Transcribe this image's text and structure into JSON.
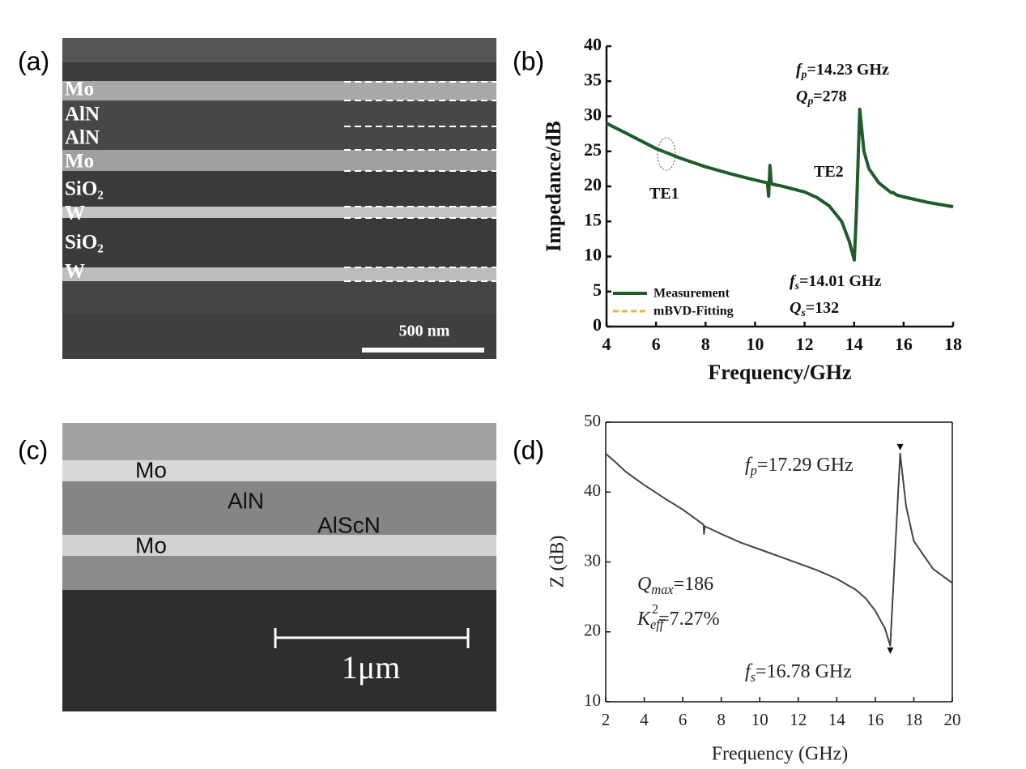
{
  "panel_labels": [
    "(a)",
    "(b)",
    "(c)",
    "(d)"
  ],
  "images": [
    {
      "labels": [
        "Mo",
        "AlN",
        "AlN",
        "Mo",
        "SiO₂",
        "W",
        "SiO₂",
        "W"
      ],
      "scale_bar": "500 nm"
    },
    {
      "labels": [
        "Mo",
        "AlN",
        "AlScN",
        "Mo"
      ],
      "scale_bar": "1μm"
    }
  ],
  "chart_data": [
    {
      "type": "line",
      "x_label": "Frequency/GHz",
      "y_label": "Impedance/dB",
      "x": [
        4,
        5,
        6,
        7,
        8,
        9,
        10,
        10.5,
        10.55,
        10.6,
        10.65,
        10.7,
        11,
        12,
        12.5,
        13,
        13.5,
        13.8,
        14.01,
        14.1,
        14.23,
        14.4,
        14.6,
        15,
        15.5,
        15.6,
        15.7,
        16,
        17,
        18
      ],
      "series": [
        {
          "name": "Measurement",
          "color": "#1f5c2b",
          "dash": false,
          "values": [
            29,
            27.2,
            25.4,
            24,
            22.8,
            21.8,
            20.9,
            20.5,
            18.6,
            23,
            20.6,
            20.3,
            20.1,
            19.2,
            18.4,
            17.2,
            15,
            12.2,
            9.5,
            17,
            31,
            25,
            22.5,
            20.5,
            19.1,
            19.1,
            18.8,
            18.5,
            17.7,
            17.1
          ]
        },
        {
          "name": "mBVD-Fitting",
          "color": "#f2b134",
          "dash": true,
          "values": [
            29,
            27.2,
            25.4,
            24,
            22.8,
            21.8,
            20.9,
            20.5,
            20.45,
            20.4,
            20.35,
            20.3,
            20.1,
            19.2,
            18.4,
            17.2,
            15,
            12.2,
            9.5,
            17,
            31,
            25,
            22.5,
            20.5,
            19.1,
            18.95,
            18.8,
            18.5,
            17.7,
            17.1
          ]
        }
      ],
      "xlim": [
        4,
        18
      ],
      "xticks": [
        4,
        6,
        8,
        10,
        12,
        14,
        16,
        18
      ],
      "ylim": [
        0,
        40
      ],
      "yticks": [
        0,
        5,
        10,
        15,
        20,
        25,
        30,
        35,
        40
      ],
      "legend": "lower left",
      "annotations": [
        {
          "base": "f",
          "sub": "p",
          "text": "=14.23 GHz"
        },
        {
          "base": "Q",
          "sub": "p",
          "text": "=278"
        },
        {
          "base": "f",
          "sub": "s",
          "text": "=14.01 GHz"
        },
        {
          "base": "Q",
          "sub": "s",
          "text": "=132"
        },
        {
          "text": "TE1"
        },
        {
          "text": "TE2"
        }
      ]
    },
    {
      "type": "line",
      "x_label": "Frequency (GHz)",
      "y_label": "Z (dB)",
      "x": [
        2,
        2.5,
        3,
        4,
        5,
        6,
        7,
        7.08,
        7.1,
        7.15,
        8,
        9,
        10,
        11,
        12,
        13,
        14,
        15,
        15.5,
        16,
        16.5,
        16.78,
        17,
        17.29,
        17.6,
        18,
        19,
        20
      ],
      "series": [
        {
          "color": "#444444",
          "values": [
            45.5,
            44.3,
            43,
            41,
            39.2,
            37.5,
            35.5,
            35.3,
            34,
            35.1,
            34,
            32.8,
            31.8,
            30.8,
            29.8,
            28.8,
            27.6,
            26,
            24.8,
            23,
            20.5,
            18,
            30,
            45.5,
            38,
            33,
            29,
            27
          ]
        }
      ],
      "xlim": [
        2,
        20
      ],
      "xticks": [
        2,
        4,
        6,
        8,
        10,
        12,
        14,
        16,
        18,
        20
      ],
      "ylim": [
        10,
        50
      ],
      "yticks": [
        10,
        20,
        30,
        40,
        50
      ],
      "annotations": [
        {
          "base": "f",
          "sub": "p",
          "text": "=17.29 GHz"
        },
        {
          "base": "f",
          "sub": "s",
          "text": "=16.78 GHz"
        },
        {
          "base": "Q",
          "sub": "max",
          "text": "=186"
        },
        {
          "base": "K",
          "sub": "eff",
          "sup": "2",
          "text": "=7.27%"
        }
      ]
    }
  ]
}
